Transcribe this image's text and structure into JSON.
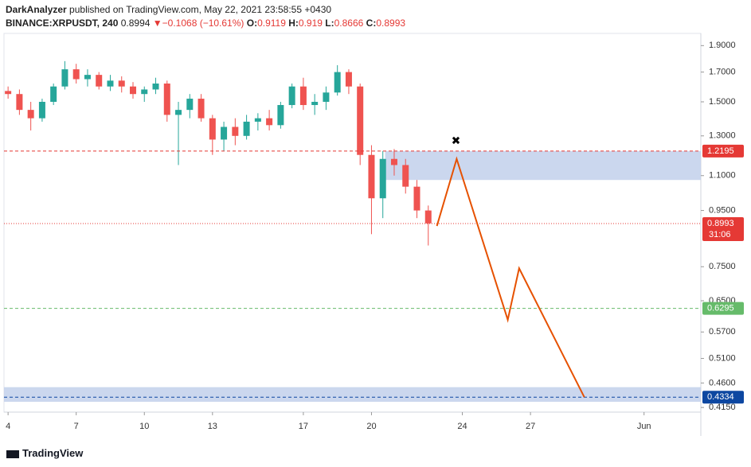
{
  "header": {
    "author": "DarkAnalyzer",
    "published": " published on TradingView.com, May 22, 2021 23:58:55 +0430",
    "symbol": "BINANCE:XRPUSDT, 240",
    "last": 0.8994,
    "arrow": "▼",
    "change": "−0.1068 (−10.61%)",
    "o_label": "O:",
    "open": 0.9119,
    "h_label": "H:",
    "high": 0.919,
    "l_label": "L:",
    "low": 0.8666,
    "c_label": "C:",
    "close": 0.8993
  },
  "chart_data": {
    "type": "candlestick",
    "log_scale": true,
    "up_color": "#26a69a",
    "down_color": "#ef5350",
    "x": [
      4,
      4.5,
      5,
      5.5,
      6,
      6.5,
      7,
      7.5,
      8,
      8.5,
      9,
      9.5,
      10,
      10.5,
      11,
      11.5,
      12,
      12.5,
      13,
      13.5,
      14,
      14.5,
      15,
      15.5,
      16,
      16.5,
      17,
      17.5,
      18,
      18.5,
      19,
      19.5,
      20,
      20.5,
      21,
      21.5,
      22,
      22.5
    ],
    "open": [
      1.57,
      1.55,
      1.45,
      1.4,
      1.5,
      1.6,
      1.72,
      1.65,
      1.68,
      1.6,
      1.64,
      1.6,
      1.55,
      1.58,
      1.62,
      1.42,
      1.45,
      1.52,
      1.4,
      1.28,
      1.35,
      1.3,
      1.38,
      1.4,
      1.36,
      1.48,
      1.6,
      1.48,
      1.5,
      1.56,
      1.7,
      1.6,
      1.2,
      1.0,
      1.18,
      1.15,
      1.05,
      0.95
    ],
    "high": [
      1.6,
      1.58,
      1.5,
      1.52,
      1.62,
      1.78,
      1.76,
      1.72,
      1.7,
      1.68,
      1.67,
      1.63,
      1.6,
      1.66,
      1.64,
      1.5,
      1.55,
      1.55,
      1.42,
      1.38,
      1.4,
      1.42,
      1.43,
      1.45,
      1.5,
      1.62,
      1.66,
      1.55,
      1.6,
      1.75,
      1.72,
      1.62,
      1.25,
      1.22,
      1.23,
      1.18,
      1.08,
      0.97
    ],
    "low": [
      1.52,
      1.42,
      1.33,
      1.38,
      1.48,
      1.58,
      1.62,
      1.6,
      1.58,
      1.57,
      1.56,
      1.52,
      1.5,
      1.55,
      1.38,
      1.15,
      1.4,
      1.38,
      1.2,
      1.22,
      1.25,
      1.28,
      1.33,
      1.33,
      1.34,
      1.46,
      1.45,
      1.42,
      1.45,
      1.54,
      1.55,
      1.15,
      0.86,
      0.92,
      1.1,
      1.02,
      0.92,
      0.82
    ],
    "close": [
      1.55,
      1.45,
      1.4,
      1.5,
      1.6,
      1.72,
      1.65,
      1.68,
      1.6,
      1.64,
      1.6,
      1.55,
      1.58,
      1.62,
      1.42,
      1.45,
      1.52,
      1.4,
      1.28,
      1.35,
      1.3,
      1.38,
      1.4,
      1.36,
      1.48,
      1.6,
      1.48,
      1.5,
      1.56,
      1.7,
      1.6,
      1.2,
      1.0,
      1.18,
      1.15,
      1.05,
      0.95,
      0.9
    ],
    "xlim": [
      3.82,
      34.5
    ],
    "xticks": [
      4,
      7,
      10,
      13,
      17,
      20,
      24,
      27,
      {
        "value": 32,
        "label": "Jun"
      }
    ],
    "ylim": [
      0.407,
      2.0
    ],
    "yticks": [
      {
        "value": 1.9,
        "label": "1.9000"
      },
      {
        "value": 1.7,
        "label": "1.7000"
      },
      {
        "value": 1.5,
        "label": "1.5000"
      },
      {
        "value": 1.3,
        "label": "1.3000"
      },
      {
        "value": 1.1,
        "label": "1.1000"
      },
      {
        "value": 0.95,
        "label": "0.9500"
      },
      {
        "value": 0.75,
        "label": "0.7500"
      },
      {
        "value": 0.65,
        "label": "0.6500"
      },
      {
        "value": 0.57,
        "label": "0.5700"
      },
      {
        "value": 0.51,
        "label": "0.5100"
      },
      {
        "value": 0.46,
        "label": "0.4600"
      },
      {
        "value": 0.415,
        "label": "0.4150"
      }
    ],
    "zones": [
      {
        "x_start": 20.6,
        "from": 1.08,
        "to": 1.2195,
        "color": "#c5d3ec"
      },
      {
        "x_start": 3.82,
        "from": 0.425,
        "to": 0.452,
        "color": "#c5d3ec"
      }
    ],
    "levels": [
      {
        "value": 1.2195,
        "color": "#e53935",
        "style": "dashed"
      },
      {
        "value": 0.8993,
        "color": "#e53935",
        "style": "dotted",
        "countdown": "31:06"
      },
      {
        "value": 0.6295,
        "color": "#66bb6a",
        "style": "dashed"
      },
      {
        "value": 0.4334,
        "color": "#0d47a1",
        "style": "dashed"
      }
    ],
    "projection": {
      "color": "#e65100",
      "x": [
        22.88,
        23.75,
        26.0,
        26.5,
        29.37
      ],
      "values": [
        0.89,
        1.18,
        0.6,
        0.745,
        0.4334
      ]
    },
    "marker": {
      "x": 23.72,
      "value": 1.27,
      "symbol": "✖"
    }
  },
  "footer": {
    "brand": "TradingView"
  }
}
